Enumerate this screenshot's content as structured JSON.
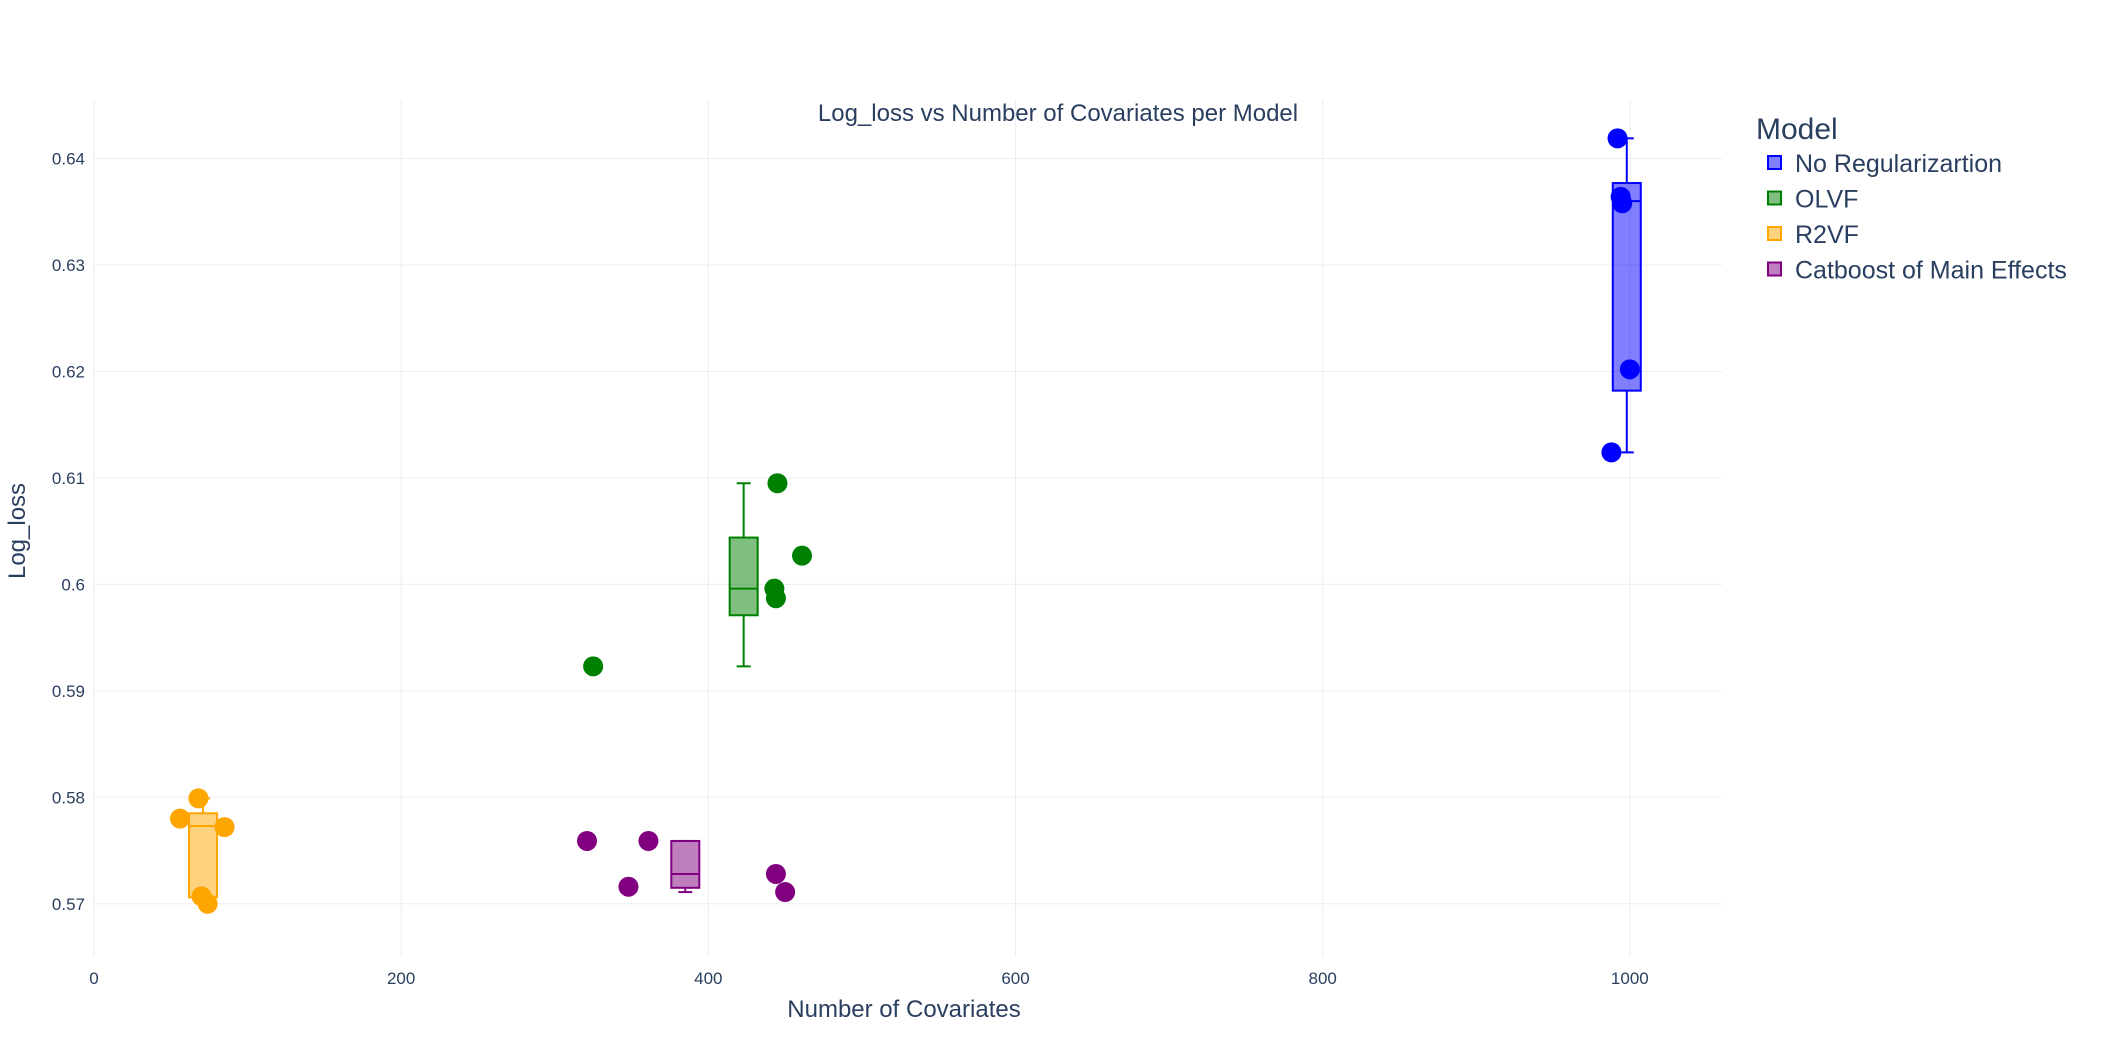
{
  "chart_data": {
    "type": "box",
    "title": "Log_loss vs Number of Covariates per Model",
    "xlabel": "Number of Covariates",
    "ylabel": "Log_loss",
    "xlim": [
      0,
      1060
    ],
    "ylim": [
      0.565,
      0.6455
    ],
    "x_ticks": [
      0,
      200,
      400,
      600,
      800,
      1000
    ],
    "y_ticks": [
      0.57,
      0.58,
      0.59,
      0.6,
      0.61,
      0.62,
      0.63,
      0.64
    ],
    "grid": true,
    "legend": {
      "title": "Model",
      "position": "right"
    },
    "series": [
      {
        "name": "No Regularizartion",
        "color": "#0000ff",
        "box": {
          "x": 998,
          "q1": 0.6182,
          "median": 0.636,
          "q3": 0.6377,
          "lower_whisker": 0.6124,
          "upper_whisker": 0.6419
        },
        "points": [
          {
            "x": 992,
            "y": 0.6419
          },
          {
            "x": 994,
            "y": 0.6364
          },
          {
            "x": 995,
            "y": 0.6358
          },
          {
            "x": 1000,
            "y": 0.6202
          },
          {
            "x": 988,
            "y": 0.6124
          }
        ]
      },
      {
        "name": "OLVF",
        "color": "#008000",
        "box": {
          "x": 423,
          "q1": 0.5971,
          "median": 0.5996,
          "q3": 0.6044,
          "lower_whisker": 0.5923,
          "upper_whisker": 0.6095
        },
        "points": [
          {
            "x": 445,
            "y": 0.6095
          },
          {
            "x": 461,
            "y": 0.6027
          },
          {
            "x": 443,
            "y": 0.5996
          },
          {
            "x": 444,
            "y": 0.5987
          },
          {
            "x": 325,
            "y": 0.5923
          }
        ]
      },
      {
        "name": "R2VF",
        "color": "#ffa500",
        "box": {
          "x": 71,
          "q1": 0.5706,
          "median": 0.5773,
          "q3": 0.5785,
          "lower_whisker": 0.57,
          "upper_whisker": 0.5799
        },
        "points": [
          {
            "x": 68,
            "y": 0.5799
          },
          {
            "x": 56,
            "y": 0.578
          },
          {
            "x": 85,
            "y": 0.5772
          },
          {
            "x": 70,
            "y": 0.5707
          },
          {
            "x": 74,
            "y": 0.57
          }
        ]
      },
      {
        "name": "Catboost of Main Effects",
        "color": "#800080",
        "box": {
          "x": 385,
          "q1": 0.5715,
          "median": 0.5728,
          "q3": 0.5759,
          "lower_whisker": 0.5711,
          "upper_whisker": 0.5759
        },
        "points": [
          {
            "x": 321,
            "y": 0.5759
          },
          {
            "x": 361,
            "y": 0.5759
          },
          {
            "x": 444,
            "y": 0.5728
          },
          {
            "x": 348,
            "y": 0.5716
          },
          {
            "x": 450,
            "y": 0.5711
          }
        ]
      }
    ]
  }
}
